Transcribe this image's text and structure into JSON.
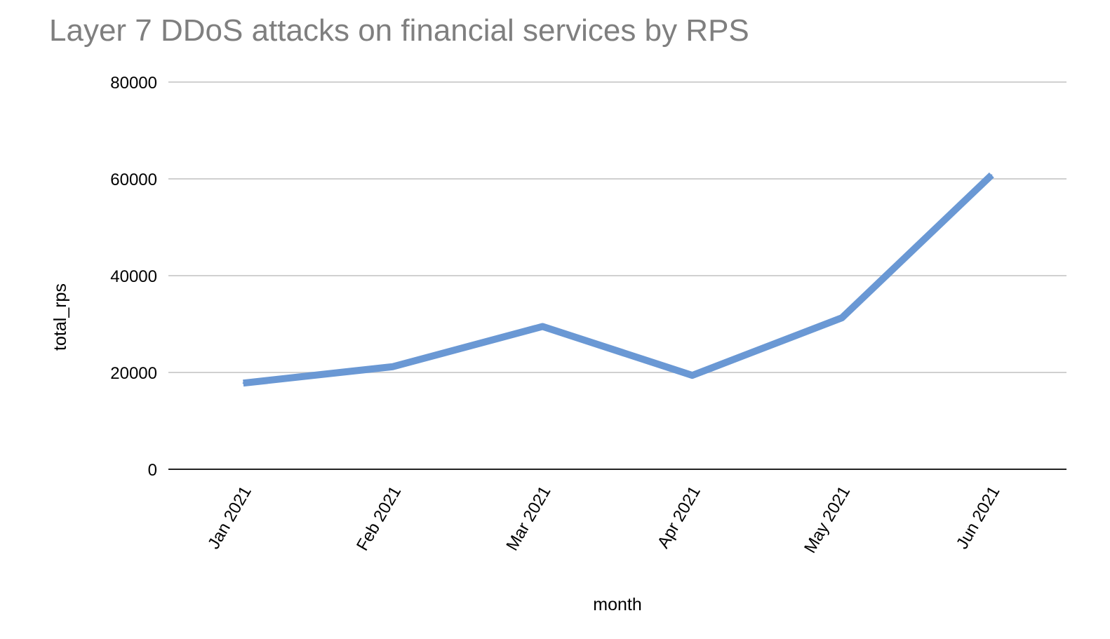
{
  "chart_data": {
    "type": "line",
    "title": "Layer 7 DDoS attacks on financial services by RPS",
    "xlabel": "month",
    "ylabel": "total_rps",
    "categories": [
      "Jan 2021",
      "Feb 2021",
      "Mar 2021",
      "Apr 2021",
      "May 2021",
      "Jun 2021"
    ],
    "series": [
      {
        "values": [
          17800,
          21200,
          29500,
          19400,
          31300,
          60800
        ],
        "color": "#6a98d4"
      }
    ],
    "ylim": [
      0,
      80000
    ],
    "yticks": [
      "0",
      "20000",
      "40000",
      "60000",
      "80000"
    ],
    "grid": true,
    "legend": "none"
  }
}
